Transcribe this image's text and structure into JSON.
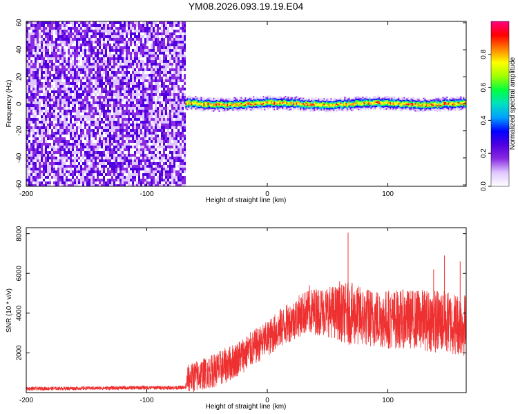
{
  "title": "YM08.2026.093.19.19.E04",
  "chart_data": [
    {
      "type": "heatmap",
      "name": "spectrogram",
      "xlabel": "Height of straight line (km)",
      "ylabel": "Frequency (Hz)",
      "xlim": [
        -200,
        165
      ],
      "ylim": [
        -61,
        61
      ],
      "xticks": [
        -200,
        -100,
        0,
        100
      ],
      "yticks": [
        -60,
        -40,
        -20,
        0,
        20,
        40,
        60
      ],
      "noise_region_x": [
        -200,
        -68
      ],
      "signal_band": {
        "x_start": -68,
        "x_end": 165,
        "center_freq": 0,
        "half_width": 3
      },
      "colorbar": {
        "label": "Normalized spectral amplitude",
        "range": [
          0.0,
          1.0
        ],
        "ticks": [
          0.0,
          0.2,
          0.4,
          0.6,
          0.8
        ],
        "colors": [
          "#ffffff",
          "#e0c8ff",
          "#8a2be2",
          "#5000e0",
          "#0000ff",
          "#00a0ff",
          "#00e0c0",
          "#00ff40",
          "#a0ff00",
          "#ffff00",
          "#ff8000",
          "#ff0000",
          "#ff0080"
        ]
      }
    },
    {
      "type": "line",
      "name": "snr",
      "xlabel": "Height of straight line (km)",
      "ylabel": "SNR (10 * v/v)",
      "xlim": [
        -200,
        165
      ],
      "ylim": [
        0,
        8300
      ],
      "xticks": [
        -200,
        -100,
        0,
        100
      ],
      "yticks": [
        2000,
        4000,
        6000,
        8000
      ],
      "color": "#ee3030",
      "series": [
        {
          "name": "SNR",
          "x": [
            -200,
            -150,
            -100,
            -68,
            -66,
            -60,
            -50,
            -40,
            -30,
            -20,
            -10,
            0,
            10,
            20,
            30,
            40,
            50,
            60,
            67,
            80,
            100,
            120,
            140,
            165
          ],
          "mean": [
            200,
            220,
            250,
            250,
            700,
            800,
            1000,
            1200,
            1500,
            1900,
            2300,
            2700,
            3200,
            3600,
            4000,
            4100,
            4100,
            4000,
            4000,
            3800,
            3700,
            3700,
            3600,
            3400
          ],
          "spread": [
            90,
            90,
            100,
            100,
            700,
            800,
            800,
            900,
            900,
            900,
            900,
            900,
            1000,
            1000,
            1100,
            1200,
            1300,
            1400,
            1600,
            1500,
            1500,
            1500,
            1600,
            1600
          ]
        }
      ],
      "peaks": [
        {
          "x": 67,
          "y": 8050
        },
        {
          "x": 60,
          "y": 5600
        },
        {
          "x": 35,
          "y": 5400
        },
        {
          "x": 147,
          "y": 6900
        },
        {
          "x": 138,
          "y": 6200
        },
        {
          "x": 160,
          "y": 6600
        }
      ]
    }
  ]
}
